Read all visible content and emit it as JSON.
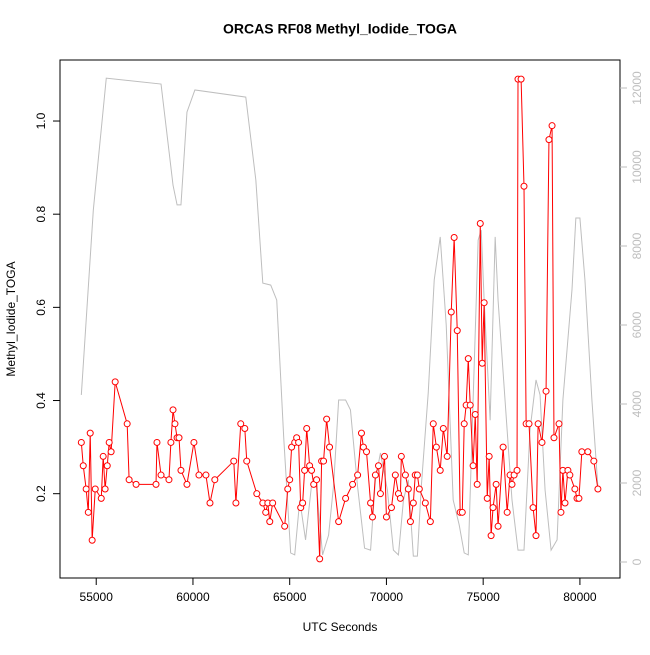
{
  "chart_data": {
    "type": "line",
    "title": "ORCAS RF08 Methyl_Iodide_TOGA",
    "x_label": "UTC Seconds",
    "y_label": "Methyl_Iodide_TOGA",
    "xlim": [
      53128,
      82072
    ],
    "xticks": [
      55000,
      60000,
      65000,
      70000,
      75000,
      80000
    ],
    "ylim": [
      0.019,
      1.131
    ],
    "yticks": [
      0.2,
      0.4,
      0.6,
      0.8,
      {
        "value": 1,
        "label": "1.0"
      }
    ],
    "y2lim": [
      -405,
      12709
    ],
    "y2ticks": [
      0,
      2000,
      4000,
      6000,
      8000,
      10000,
      12000
    ],
    "series": [
      {
        "color": "#ff0000",
        "markers": true,
        "x": [
          54230,
          54330,
          54480,
          54590,
          54690,
          54790,
          54950,
          55260,
          55360,
          55460,
          55570,
          55670,
          55770,
          55980,
          56600,
          56700,
          57060,
          58090,
          58140,
          58350,
          58760,
          58860,
          58970,
          59070,
          59180,
          59280,
          59380,
          59690,
          60050,
          60310,
          60670,
          60880,
          61130,
          62110,
          62220,
          62470,
          62680,
          62780,
          63300,
          63610,
          63760,
          63870,
          63970,
          64120,
          64740,
          64900,
          65000,
          65100,
          65260,
          65360,
          65460,
          65570,
          65670,
          65770,
          65880,
          66030,
          66130,
          66240,
          66390,
          66550,
          66650,
          66750,
          66910,
          67060,
          67530,
          67890,
          68250,
          68510,
          68710,
          68810,
          68970,
          69180,
          69280,
          69430,
          69590,
          69690,
          69900,
          70000,
          70260,
          70460,
          70620,
          70720,
          70770,
          70980,
          71130,
          71240,
          71390,
          71490,
          71600,
          71700,
          72010,
          72270,
          72420,
          72580,
          72780,
          72940,
          73140,
          73350,
          73500,
          73660,
          73810,
          73920,
          74020,
          74120,
          74230,
          74330,
          74480,
          74590,
          74690,
          74850,
          74950,
          75050,
          75210,
          75310,
          75410,
          75510,
          75670,
          75770,
          76030,
          76240,
          76390,
          76490,
          76600,
          76750,
          76800,
          76960,
          77110,
          77220,
          77370,
          77580,
          77730,
          77840,
          78040,
          78250,
          78400,
          78560,
          78660,
          78920,
          79020,
          79120,
          79230,
          79380,
          79480,
          79740,
          79850,
          79950,
          80100,
          80410,
          80720,
          80930
        ],
        "values": [
          0.31,
          0.26,
          0.21,
          0.16,
          0.33,
          0.1,
          0.21,
          0.19,
          0.28,
          0.21,
          0.26,
          0.31,
          0.29,
          0.44,
          0.35,
          0.23,
          0.22,
          0.22,
          0.31,
          0.24,
          0.23,
          0.31,
          0.38,
          0.35,
          0.32,
          0.32,
          0.25,
          0.22,
          0.31,
          0.24,
          0.24,
          0.18,
          0.23,
          0.27,
          0.18,
          0.35,
          0.34,
          0.27,
          0.2,
          0.18,
          0.16,
          0.18,
          0.14,
          0.18,
          0.13,
          0.21,
          0.23,
          0.3,
          0.31,
          0.32,
          0.31,
          0.17,
          0.18,
          0.25,
          0.34,
          0.26,
          0.25,
          0.22,
          0.23,
          0.06,
          0.27,
          0.27,
          0.36,
          0.3,
          0.14,
          0.19,
          0.22,
          0.24,
          0.33,
          0.3,
          0.29,
          0.18,
          0.15,
          0.24,
          0.26,
          0.2,
          0.28,
          0.15,
          0.17,
          0.24,
          0.2,
          0.19,
          0.28,
          0.24,
          0.21,
          0.14,
          0.18,
          0.24,
          0.24,
          0.21,
          0.18,
          0.14,
          0.35,
          0.3,
          0.25,
          0.34,
          0.28,
          0.59,
          0.75,
          0.55,
          0.16,
          0.16,
          0.35,
          0.39,
          0.49,
          0.39,
          0.26,
          0.37,
          0.22,
          0.78,
          0.48,
          0.61,
          0.19,
          0.28,
          0.11,
          0.17,
          0.22,
          0.13,
          0.3,
          0.16,
          0.24,
          0.22,
          0.24,
          0.25,
          1.09,
          1.09,
          0.86,
          0.35,
          0.35,
          0.17,
          0.11,
          0.35,
          0.31,
          0.42,
          0.96,
          0.99,
          0.32,
          0.35,
          0.16,
          0.25,
          0.18,
          0.25,
          0.24,
          0.21,
          0.19,
          0.19,
          0.29,
          0.29,
          0.27,
          0.21
        ]
      },
      {
        "color": "#bebebe",
        "axis": "y2",
        "markers": false,
        "x": [
          54230,
          54850,
          55520,
          58350,
          58970,
          59180,
          59380,
          59690,
          60100,
          62730,
          63250,
          63610,
          64020,
          64330,
          64690,
          65050,
          65260,
          65520,
          65820,
          66130,
          66390,
          66700,
          67010,
          67270,
          67530,
          67890,
          68140,
          68510,
          68870,
          69180,
          69430,
          69690,
          70050,
          70360,
          70620,
          70880,
          71130,
          71390,
          71600,
          71800,
          72160,
          72470,
          72780,
          73090,
          73450,
          73760,
          74020,
          74230,
          74480,
          74740,
          74900,
          75050,
          75360,
          75620,
          75770,
          76130,
          76490,
          76800,
          77110,
          77420,
          77730,
          77940,
          78200,
          78510,
          78820,
          79120,
          79590,
          79790,
          80000,
          80260,
          80620,
          80930
        ],
        "values": [
          4230,
          8910,
          12250,
          12100,
          9540,
          9040,
          9040,
          11390,
          11950,
          11770,
          9670,
          7060,
          7010,
          6630,
          3160,
          230,
          180,
          1570,
          560,
          1950,
          1900,
          180,
          680,
          1950,
          4100,
          4100,
          3850,
          1900,
          350,
          300,
          2080,
          2760,
          1820,
          300,
          180,
          1570,
          2080,
          150,
          150,
          1900,
          4280,
          7140,
          8230,
          6000,
          1570,
          940,
          230,
          180,
          4100,
          8150,
          8400,
          6630,
          3590,
          8230,
          6630,
          4100,
          1570,
          300,
          300,
          3340,
          4610,
          4230,
          1820,
          300,
          560,
          4100,
          6890,
          8710,
          8710,
          7140,
          4100,
          1900
        ]
      }
    ]
  }
}
